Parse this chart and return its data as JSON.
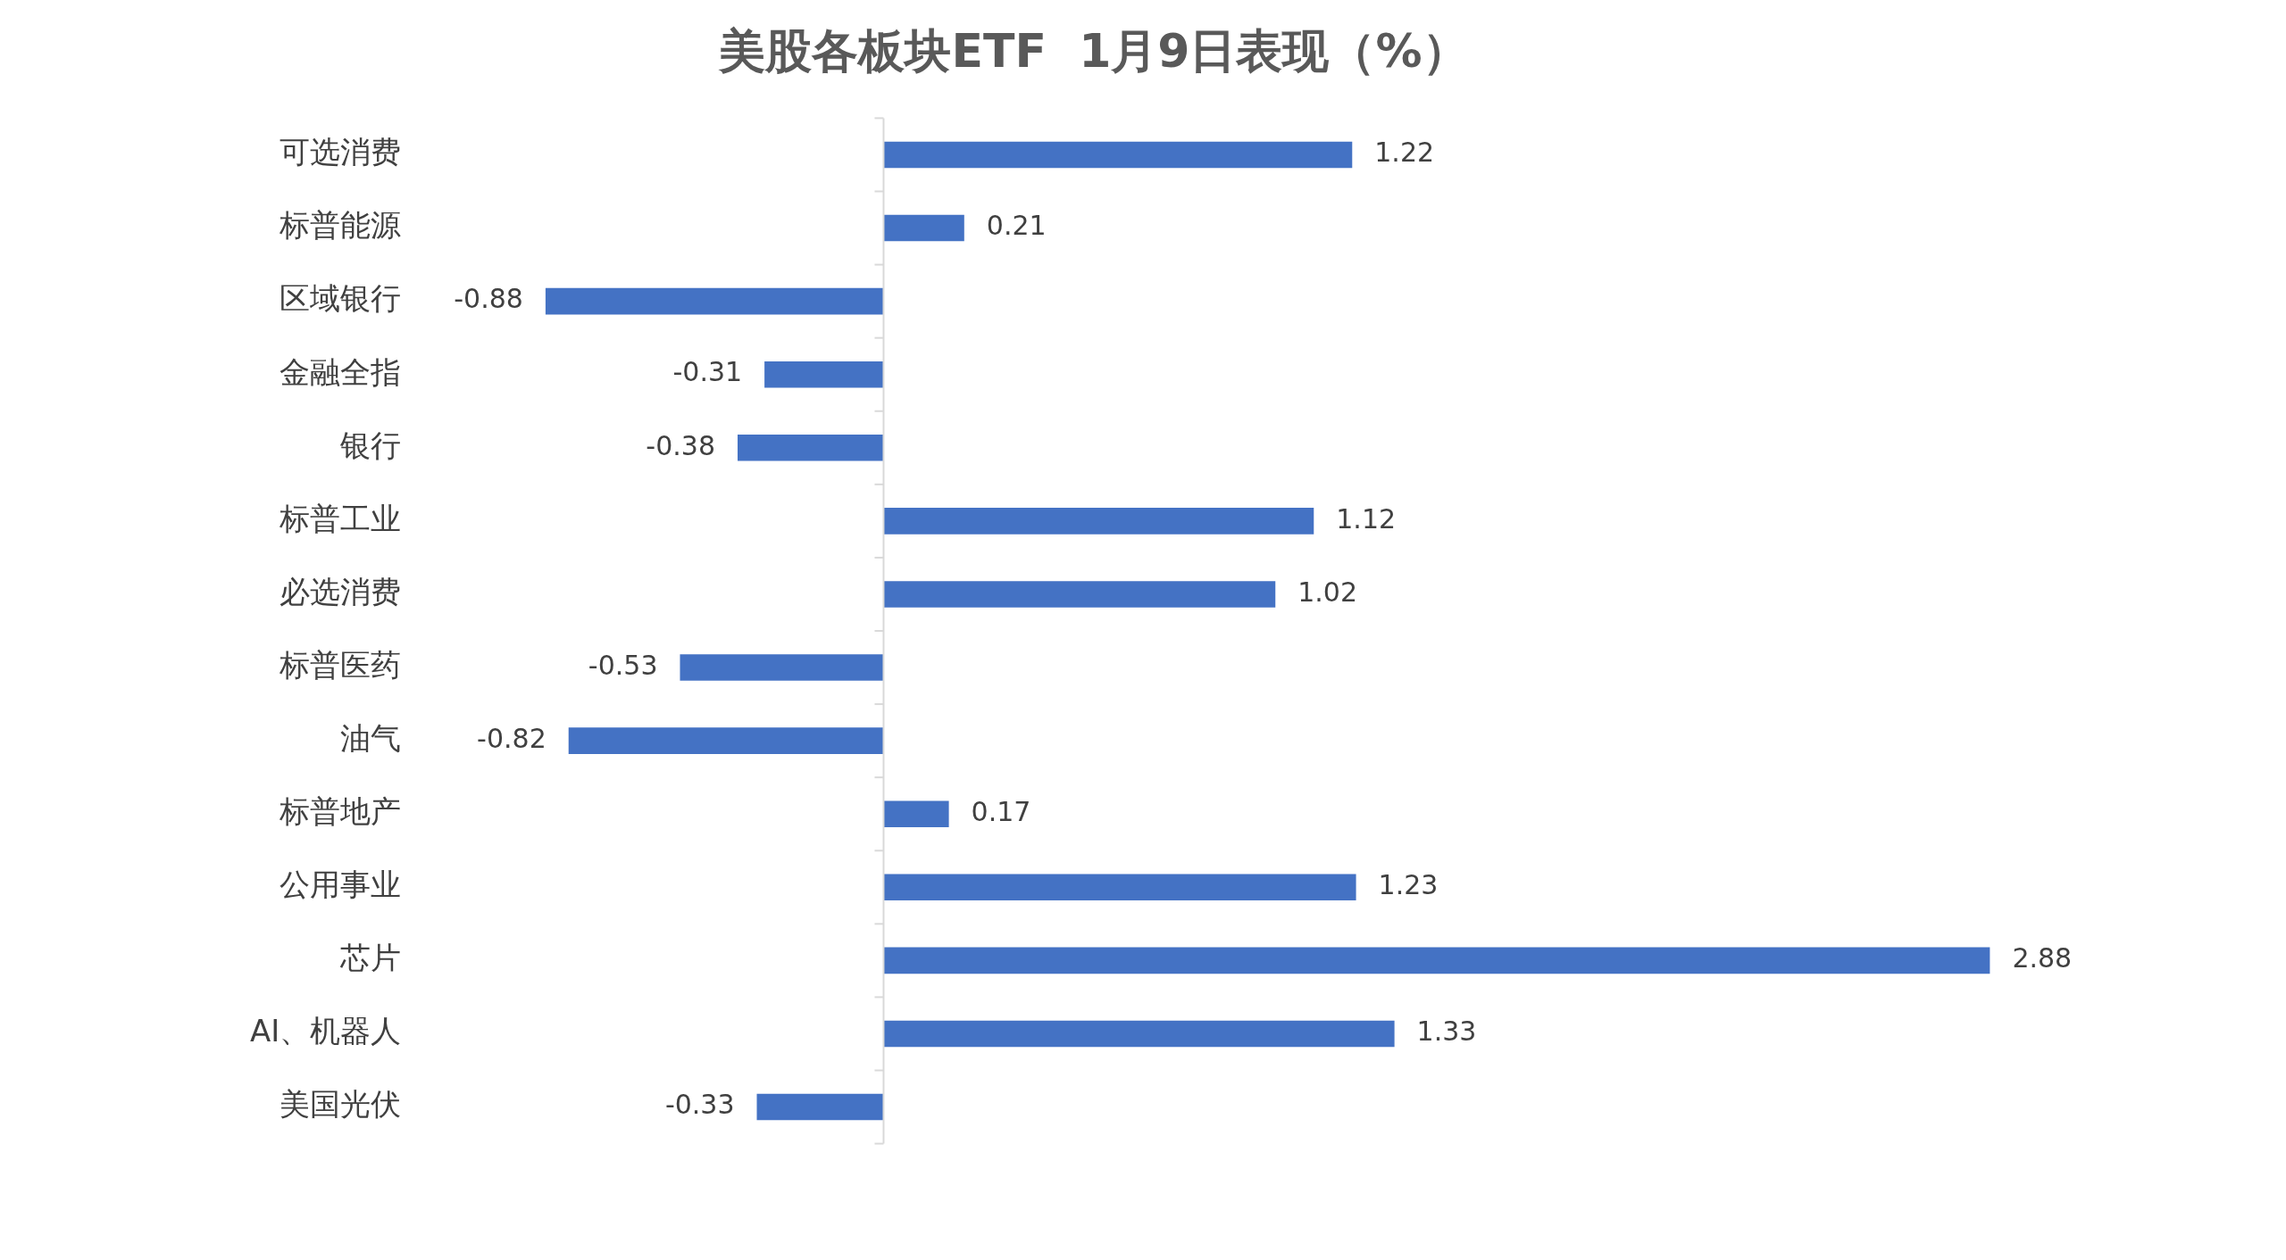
{
  "chart_data": {
    "type": "bar",
    "orientation": "horizontal",
    "title": "美股各板块ETF  1月9日表现（%）",
    "categories": [
      "可选消费",
      "标普能源",
      "区域银行",
      "金融全指",
      "银行",
      "标普工业",
      "必选消费",
      "标普医药",
      "油气",
      "标普地产",
      "公用事业",
      "芯片",
      "AI、机器人",
      "美国光伏"
    ],
    "values": [
      1.22,
      0.21,
      -0.88,
      -0.31,
      -0.38,
      1.12,
      1.02,
      -0.53,
      -0.82,
      0.17,
      1.23,
      2.88,
      1.33,
      -0.33
    ],
    "color": "#4472c4",
    "data_labels": true,
    "grid": false,
    "legend": false
  }
}
